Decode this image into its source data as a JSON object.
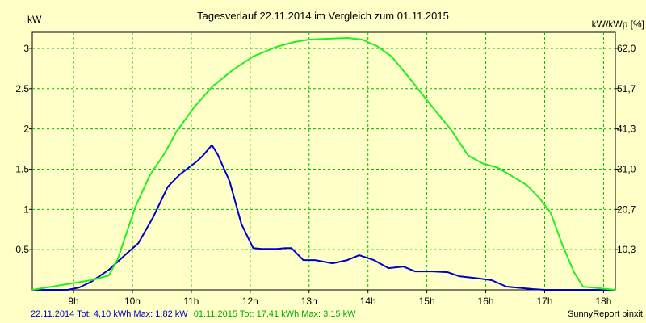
{
  "chart_data": {
    "type": "line",
    "title": "Tagesverlauf 22.11.2014 im Vergleich zum 01.11.2015",
    "ylabel_left": "kW",
    "ylabel_right": "kW/kWp [%]",
    "grid": true,
    "xlim": [
      8.3,
      18.2
    ],
    "ylim": [
      0,
      3.2
    ],
    "x_ticks": [
      {
        "v": 9,
        "label": "9h"
      },
      {
        "v": 10,
        "label": "10h"
      },
      {
        "v": 11,
        "label": "11h"
      },
      {
        "v": 12,
        "label": "12h"
      },
      {
        "v": 13,
        "label": "13h"
      },
      {
        "v": 14,
        "label": "14h"
      },
      {
        "v": 15,
        "label": "15h"
      },
      {
        "v": 16,
        "label": "16h"
      },
      {
        "v": 17,
        "label": "17h"
      },
      {
        "v": 18,
        "label": "18h"
      }
    ],
    "y_ticks_left": [
      {
        "v": 0.5,
        "label": "0.5"
      },
      {
        "v": 1,
        "label": "1"
      },
      {
        "v": 1.5,
        "label": "1.5"
      },
      {
        "v": 2,
        "label": "2"
      },
      {
        "v": 2.5,
        "label": "2.5"
      },
      {
        "v": 3,
        "label": "3"
      }
    ],
    "y_ticks_right": [
      {
        "v": 0.5,
        "label": "10,3"
      },
      {
        "v": 1,
        "label": "20,7"
      },
      {
        "v": 1.5,
        "label": "31,0"
      },
      {
        "v": 2,
        "label": "41,3"
      },
      {
        "v": 2.5,
        "label": "51,7"
      },
      {
        "v": 3,
        "label": "62,0"
      }
    ],
    "series": [
      {
        "name": "22.11.2014",
        "color": "#0000cc",
        "points": [
          [
            8.3,
            0
          ],
          [
            8.9,
            0
          ],
          [
            9.1,
            0.03
          ],
          [
            9.3,
            0.1
          ],
          [
            9.6,
            0.25
          ],
          [
            9.9,
            0.45
          ],
          [
            10.1,
            0.58
          ],
          [
            10.35,
            0.9
          ],
          [
            10.6,
            1.28
          ],
          [
            10.8,
            1.43
          ],
          [
            11.1,
            1.6
          ],
          [
            11.2,
            1.67
          ],
          [
            11.35,
            1.8
          ],
          [
            11.45,
            1.68
          ],
          [
            11.65,
            1.35
          ],
          [
            11.85,
            0.82
          ],
          [
            12.05,
            0.52
          ],
          [
            12.2,
            0.51
          ],
          [
            12.45,
            0.51
          ],
          [
            12.6,
            0.52
          ],
          [
            12.7,
            0.52
          ],
          [
            12.9,
            0.37
          ],
          [
            13.1,
            0.37
          ],
          [
            13.4,
            0.33
          ],
          [
            13.65,
            0.37
          ],
          [
            13.85,
            0.43
          ],
          [
            14.1,
            0.37
          ],
          [
            14.35,
            0.27
          ],
          [
            14.6,
            0.29
          ],
          [
            14.8,
            0.23
          ],
          [
            15.1,
            0.23
          ],
          [
            15.35,
            0.22
          ],
          [
            15.55,
            0.17
          ],
          [
            15.9,
            0.14
          ],
          [
            16.1,
            0.12
          ],
          [
            16.35,
            0.04
          ],
          [
            16.8,
            0.01
          ],
          [
            17,
            0
          ],
          [
            18.2,
            0
          ]
        ]
      },
      {
        "name": "01.11.2015",
        "color": "#22ee22",
        "points": [
          [
            8.3,
            0
          ],
          [
            9.3,
            0.12
          ],
          [
            9.6,
            0.18
          ],
          [
            9.75,
            0.38
          ],
          [
            10.05,
            1.03
          ],
          [
            10.3,
            1.43
          ],
          [
            10.55,
            1.7
          ],
          [
            10.75,
            1.97
          ],
          [
            11.05,
            2.27
          ],
          [
            11.35,
            2.52
          ],
          [
            11.7,
            2.73
          ],
          [
            12.05,
            2.9
          ],
          [
            12.45,
            3.02
          ],
          [
            12.75,
            3.08
          ],
          [
            13.0,
            3.11
          ],
          [
            13.3,
            3.12
          ],
          [
            13.65,
            3.13
          ],
          [
            13.9,
            3.11
          ],
          [
            14.15,
            3.03
          ],
          [
            14.4,
            2.9
          ],
          [
            14.65,
            2.68
          ],
          [
            14.9,
            2.45
          ],
          [
            15.15,
            2.22
          ],
          [
            15.4,
            2.0
          ],
          [
            15.7,
            1.67
          ],
          [
            15.95,
            1.57
          ],
          [
            16.2,
            1.52
          ],
          [
            16.45,
            1.41
          ],
          [
            16.7,
            1.3
          ],
          [
            16.9,
            1.15
          ],
          [
            17.1,
            0.96
          ],
          [
            17.3,
            0.56
          ],
          [
            17.5,
            0.22
          ],
          [
            17.65,
            0.04
          ],
          [
            18.2,
            0
          ]
        ]
      }
    ]
  },
  "footer": {
    "series1_summary": "22.11.2014 Tot: 4,10 kWh Max: 1,82 kW",
    "series2_summary": "01.11.2015 Tot: 17,41 kWh Max: 3,15 kW",
    "credit": "SunnyReport pinxit"
  }
}
